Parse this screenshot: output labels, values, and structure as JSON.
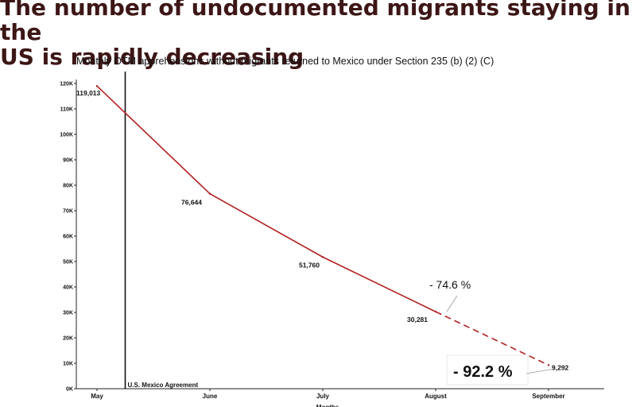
{
  "headline": "The number of undocumented migrants staying in the\nUS is rapidly decreasing",
  "chart_data": {
    "type": "line",
    "title": "Monthly OTM apprehensions without migrants returned to Mexico under Section 235 (b) (2) (C)",
    "xlabel": "Months",
    "ylabel": "",
    "categories": [
      "May",
      "June",
      "July",
      "August",
      "September"
    ],
    "series": [
      {
        "values": [
          119013,
          76644,
          51760,
          30281,
          9292
        ],
        "data_labels": [
          "119,013",
          "76,644",
          "51,760",
          "30,281",
          "9,292"
        ]
      }
    ],
    "projected_segment": {
      "from": "August",
      "to": "September",
      "style": "dashed"
    },
    "ylim": [
      0,
      122000
    ],
    "yticks": [
      0,
      10000,
      20000,
      30000,
      40000,
      50000,
      60000,
      70000,
      80000,
      90000,
      100000,
      110000,
      120000
    ],
    "ytick_labels": [
      "0K",
      "10K",
      "20K",
      "30K",
      "40K",
      "50K",
      "60K",
      "70K",
      "80K",
      "90K",
      "100K",
      "110K",
      "120K"
    ],
    "reference_line": {
      "x": 0.25,
      "label": "U.S. Mexico Agreement"
    },
    "annotations": [
      {
        "text": "- 74.6 %",
        "target": "August"
      },
      {
        "text": "- 92.2 %",
        "target": "September"
      }
    ],
    "grid": false,
    "line_color": "#b22222"
  }
}
